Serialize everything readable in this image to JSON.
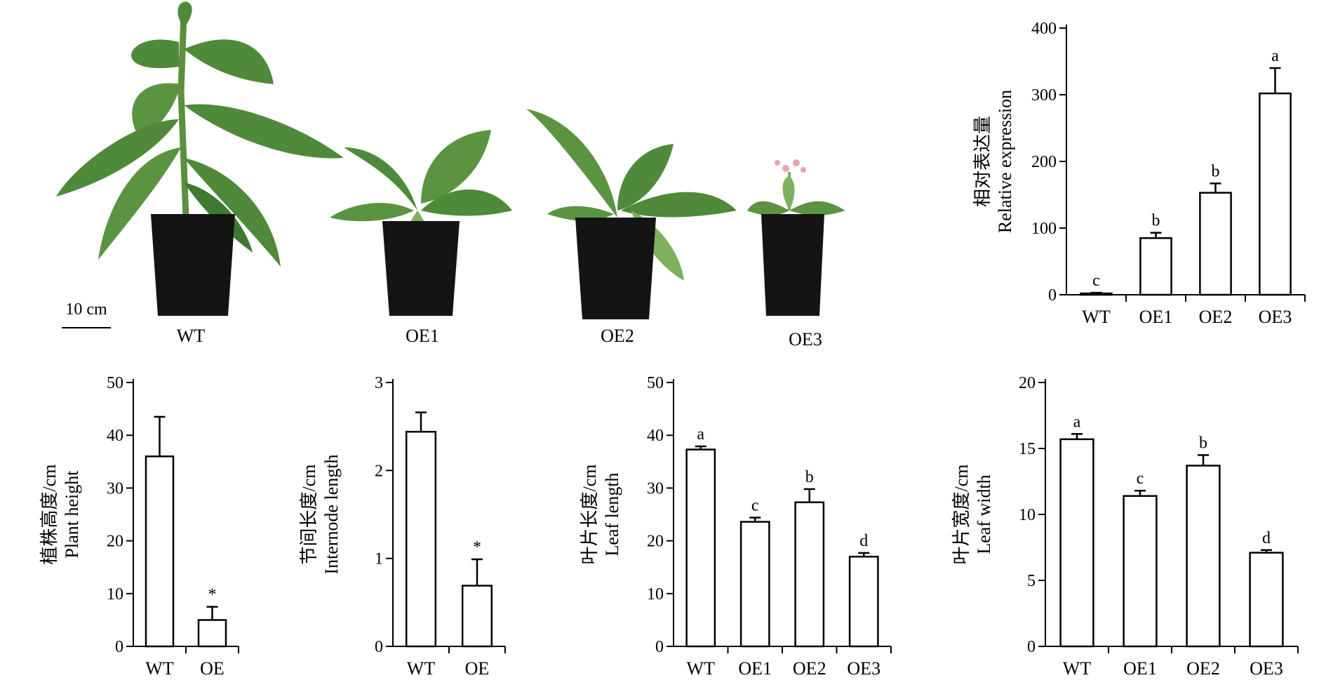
{
  "photo": {
    "scale_bar": "10 cm",
    "plants": [
      {
        "label": "WT"
      },
      {
        "label": "OE1"
      },
      {
        "label": "OE2"
      },
      {
        "label": "OE3"
      }
    ]
  },
  "colors": {
    "leaf": "#4f8a3a",
    "leaf_light": "#7fb05e",
    "pot": "#141414",
    "flower": "#e9a2b6"
  },
  "chart_data": [
    {
      "id": "expr",
      "type": "bar",
      "ylabel_cn": "相对表达量",
      "ylabel_en": "Relative expression",
      "categories": [
        "WT",
        "OE1",
        "OE2",
        "OE3"
      ],
      "values": [
        2,
        85,
        153,
        302
      ],
      "errors": [
        1,
        8,
        14,
        38
      ],
      "sig": [
        "c",
        "b",
        "b",
        "a"
      ],
      "ylim": [
        0,
        400
      ],
      "yticks": [
        0,
        100,
        200,
        300,
        400
      ]
    },
    {
      "id": "height",
      "type": "bar",
      "ylabel_cn": "植株高度/cm",
      "ylabel_en": "Plant  height",
      "categories": [
        "WT",
        "OE"
      ],
      "values": [
        36,
        5
      ],
      "errors": [
        7.5,
        2.5
      ],
      "sig": [
        "",
        "*"
      ],
      "ylim": [
        0,
        50
      ],
      "yticks": [
        0,
        10,
        20,
        30,
        40,
        50
      ]
    },
    {
      "id": "intern",
      "type": "bar",
      "ylabel_cn": "节间长度/cm",
      "ylabel_en": "Internode length",
      "categories": [
        "WT",
        "OE"
      ],
      "values": [
        2.44,
        0.69
      ],
      "errors": [
        0.22,
        0.3
      ],
      "sig": [
        "",
        "*"
      ],
      "ylim": [
        0,
        3
      ],
      "yticks": [
        0,
        1,
        2,
        3
      ]
    },
    {
      "id": "llen",
      "type": "bar",
      "ylabel_cn": "叶片长度/cm",
      "ylabel_en": "Leaf length",
      "categories": [
        "WT",
        "OE1",
        "OE2",
        "OE3"
      ],
      "values": [
        37.3,
        23.6,
        27.3,
        17.0
      ],
      "errors": [
        0.6,
        0.8,
        2.5,
        0.7
      ],
      "sig": [
        "a",
        "c",
        "b",
        "d"
      ],
      "ylim": [
        0,
        50
      ],
      "yticks": [
        0,
        10,
        20,
        30,
        40,
        50
      ]
    },
    {
      "id": "lwid",
      "type": "bar",
      "ylabel_cn": "叶片宽度/cm",
      "ylabel_en": "Leaf width",
      "categories": [
        "WT",
        "OE1",
        "OE2",
        "OE3"
      ],
      "values": [
        15.7,
        11.4,
        13.7,
        7.1
      ],
      "errors": [
        0.4,
        0.4,
        0.8,
        0.2
      ],
      "sig": [
        "a",
        "c",
        "b",
        "d"
      ],
      "ylim": [
        0,
        20
      ],
      "yticks": [
        0,
        5,
        10,
        15,
        20
      ]
    }
  ]
}
